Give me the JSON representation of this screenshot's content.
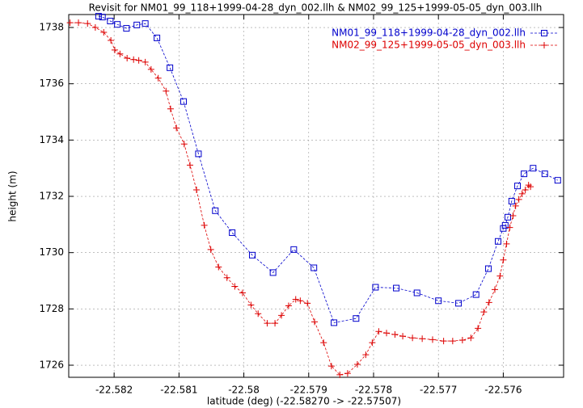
{
  "chart_data": {
    "type": "line",
    "title": "Revisit for NM01_99_118+1999-04-28_dyn_002.llh & NM02_99_125+1999-05-05_dyn_003.llh",
    "x_label": "latitude (deg) (-22.58270 -> -22.57507)",
    "y_label": "height (m)",
    "xlim": [
      -22.5827,
      -22.57507
    ],
    "ylim": [
      1725.57,
      1738.46
    ],
    "xticks": [
      -22.582,
      -22.581,
      -22.58,
      -22.579,
      -22.578,
      -22.577,
      -22.576
    ],
    "yticks": [
      1726,
      1728,
      1730,
      1732,
      1734,
      1736,
      1738
    ],
    "grid": true,
    "legend": "top-right",
    "series": [
      {
        "name": "NM01_99_118+1999-04-28_dyn_002.llh",
        "color": "#0000cc",
        "marker": "square",
        "x": [
          -22.58224,
          -22.58218,
          -22.58206,
          -22.58195,
          -22.58181,
          -22.58165,
          -22.58152,
          -22.58134,
          -22.58114,
          -22.58093,
          -22.5807,
          -22.58044,
          -22.58018,
          -22.57987,
          -22.57955,
          -22.57923,
          -22.57892,
          -22.57861,
          -22.57827,
          -22.57797,
          -22.57765,
          -22.57733,
          -22.577,
          -22.57669,
          -22.57642,
          -22.57623,
          -22.57608,
          -22.576,
          -22.57597,
          -22.57593,
          -22.57587,
          -22.57578,
          -22.57568,
          -22.57554,
          -22.57536,
          -22.57516
        ],
        "values": [
          1738.4,
          1738.37,
          1738.23,
          1738.11,
          1737.97,
          1738.09,
          1738.14,
          1737.63,
          1736.57,
          1735.37,
          1733.51,
          1731.49,
          1730.71,
          1729.91,
          1729.29,
          1730.11,
          1729.46,
          1727.51,
          1727.66,
          1728.77,
          1728.74,
          1728.57,
          1728.29,
          1728.2,
          1728.51,
          1729.43,
          1730.4,
          1730.86,
          1730.97,
          1731.26,
          1731.83,
          1732.37,
          1732.8,
          1733.0,
          1732.8,
          1732.57
        ]
      },
      {
        "name": "NM02_99_125+1999-05-05_dyn_003.llh",
        "color": "#dd0000",
        "marker": "plus",
        "x": [
          -22.58268,
          -22.58255,
          -22.58241,
          -22.58229,
          -22.58216,
          -22.58205,
          -22.58199,
          -22.58191,
          -22.5818,
          -22.5817,
          -22.58162,
          -22.58152,
          -22.58143,
          -22.58132,
          -22.5812,
          -22.58113,
          -22.58104,
          -22.58092,
          -22.58083,
          -22.58073,
          -22.58061,
          -22.58051,
          -22.58039,
          -22.58026,
          -22.58014,
          -22.58002,
          -22.57989,
          -22.57978,
          -22.57964,
          -22.57952,
          -22.57942,
          -22.57931,
          -22.5792,
          -22.57913,
          -22.57902,
          -22.57891,
          -22.57877,
          -22.57865,
          -22.57852,
          -22.5784,
          -22.57825,
          -22.57812,
          -22.57802,
          -22.57792,
          -22.5778,
          -22.57767,
          -22.57755,
          -22.5774,
          -22.57725,
          -22.57709,
          -22.57692,
          -22.57678,
          -22.57663,
          -22.5765,
          -22.57639,
          -22.5763,
          -22.57622,
          -22.57613,
          -22.57605,
          -22.576,
          -22.57595,
          -22.5759,
          -22.57585,
          -22.57581,
          -22.57576,
          -22.57571,
          -22.57566,
          -22.57561,
          -22.57558
        ],
        "values": [
          1738.17,
          1738.17,
          1738.14,
          1738.0,
          1737.83,
          1737.54,
          1737.2,
          1737.06,
          1736.91,
          1736.86,
          1736.83,
          1736.77,
          1736.51,
          1736.2,
          1735.74,
          1735.11,
          1734.43,
          1733.86,
          1733.11,
          1732.23,
          1730.97,
          1730.11,
          1729.49,
          1729.11,
          1728.8,
          1728.57,
          1728.14,
          1727.83,
          1727.49,
          1727.49,
          1727.77,
          1728.11,
          1728.34,
          1728.29,
          1728.2,
          1727.54,
          1726.8,
          1725.97,
          1725.66,
          1725.71,
          1726.03,
          1726.37,
          1726.8,
          1727.2,
          1727.14,
          1727.09,
          1727.03,
          1726.97,
          1726.94,
          1726.91,
          1726.86,
          1726.86,
          1726.89,
          1726.97,
          1727.31,
          1727.89,
          1728.23,
          1728.69,
          1729.17,
          1729.74,
          1730.31,
          1730.89,
          1731.31,
          1731.66,
          1731.89,
          1732.09,
          1732.23,
          1732.4,
          1732.34
        ]
      }
    ]
  }
}
